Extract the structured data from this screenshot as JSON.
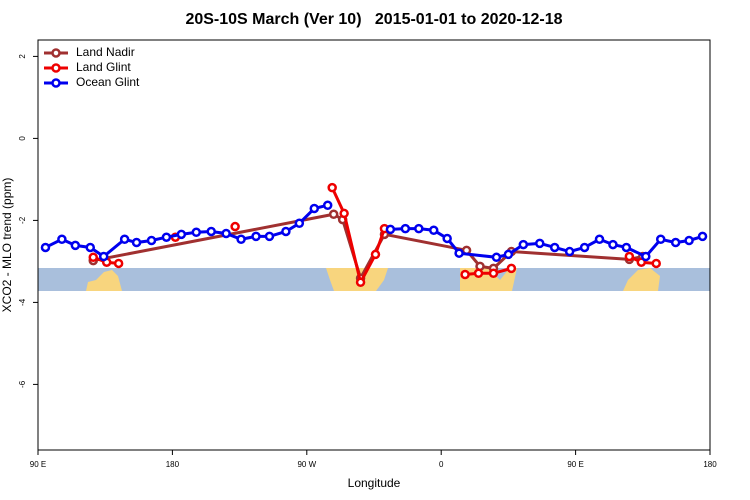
{
  "chart_data": {
    "type": "line",
    "title": "20S-10S March (Ver 10)   2015-01-01 to 2020-12-18",
    "xlabel": "Longitude",
    "ylabel": "XCO2 - MLO trend (ppm)",
    "xlim": [
      90,
      540
    ],
    "ylim": [
      -7.6,
      2.4
    ],
    "xticks": [
      {
        "value": 90,
        "label": "90 E"
      },
      180,
      {
        "value": 270,
        "label": "90 W"
      },
      {
        "value": 360,
        "label": "0"
      },
      {
        "value": 450,
        "label": "90 E"
      },
      {
        "value": 540,
        "label": "180"
      }
    ],
    "yticks": [
      -6,
      -4,
      -2,
      0,
      2
    ],
    "legend": "top-left",
    "series": [
      {
        "name": "Land Nadir",
        "color": "#a03030",
        "x": [
          127,
          288,
          294,
          306,
          322,
          377,
          386,
          395,
          407,
          486,
          495
        ],
        "values": [
          -2.98,
          -1.85,
          -1.98,
          -3.41,
          -2.34,
          -2.73,
          -3.12,
          -3.17,
          -2.76,
          -2.95,
          -2.88
        ]
      },
      {
        "name": "Land Glint",
        "color": "#ee0000",
        "x": [
          127,
          136,
          144,
          null,
          182,
          null,
          222,
          null,
          287,
          295,
          306,
          316,
          322,
          null,
          376,
          385,
          395,
          407,
          null,
          486,
          494,
          504
        ],
        "values": [
          -2.9,
          -3.02,
          -3.05,
          null,
          -2.41,
          null,
          -2.15,
          null,
          -1.2,
          -1.83,
          -3.51,
          -2.83,
          -2.2,
          null,
          -3.32,
          -3.29,
          -3.29,
          -3.17,
          null,
          -2.88,
          -3.02,
          -3.05
        ]
      },
      {
        "name": "Ocean Glint",
        "color": "#0000ee",
        "x": [
          95,
          106,
          115,
          125,
          134,
          148,
          156,
          166,
          176,
          186,
          196,
          206,
          216,
          226,
          236,
          245,
          256,
          265,
          275,
          284,
          null,
          326,
          336,
          345,
          355,
          364,
          372,
          397,
          405,
          415,
          426,
          436,
          446,
          456,
          466,
          475,
          484,
          497,
          507,
          517,
          526,
          535
        ],
        "values": [
          -2.66,
          -2.46,
          -2.61,
          -2.66,
          -2.88,
          -2.46,
          -2.54,
          -2.49,
          -2.41,
          -2.34,
          -2.29,
          -2.27,
          -2.32,
          -2.46,
          -2.39,
          -2.39,
          -2.27,
          -2.07,
          -1.71,
          -1.63,
          null,
          -2.22,
          -2.2,
          -2.2,
          -2.24,
          -2.44,
          -2.8,
          -2.9,
          -2.83,
          -2.59,
          -2.56,
          -2.66,
          -2.76,
          -2.66,
          -2.46,
          -2.59,
          -2.66,
          -2.88,
          -2.46,
          -2.54,
          -2.49,
          -2.39
        ]
      }
    ]
  }
}
